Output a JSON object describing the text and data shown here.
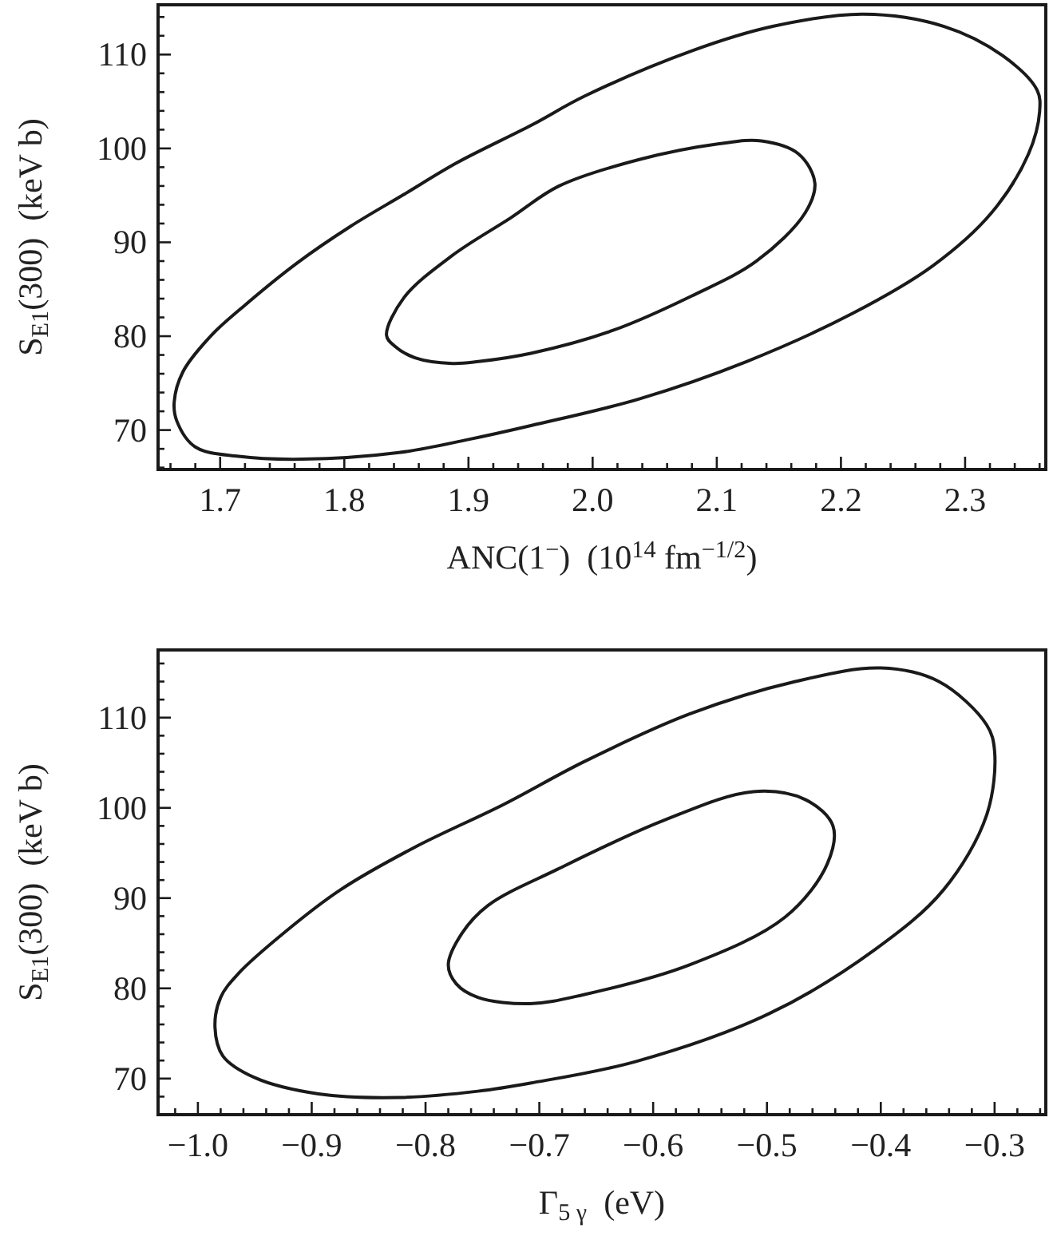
{
  "chart_data": [
    {
      "type": "line",
      "xlabel": "ANC(1$^{−}$)  (10$^{14}$ fm$^{−1/2}$)",
      "ylabel": "S$_{E1}$(300)  (keV b)",
      "xlim": [
        1.65,
        2.365
      ],
      "ylim": [
        65.8,
        115.3
      ],
      "xticks": [
        {
          "value": 1.7,
          "label": "1.7"
        },
        {
          "value": 1.8,
          "label": "1.8"
        },
        {
          "value": 1.9,
          "label": "1.9"
        },
        {
          "value": 2.0,
          "label": "2.0"
        },
        {
          "value": 2.1,
          "label": "2.1"
        },
        {
          "value": 2.2,
          "label": "2.2"
        },
        {
          "value": 2.3,
          "label": "2.3"
        },
        {
          "value": 1.66,
          "label": null
        },
        {
          "value": 1.68,
          "label": null
        },
        {
          "value": 1.72,
          "label": null
        },
        {
          "value": 1.74,
          "label": null
        },
        {
          "value": 1.76,
          "label": null
        },
        {
          "value": 1.78,
          "label": null
        },
        {
          "value": 1.82,
          "label": null
        },
        {
          "value": 1.84,
          "label": null
        },
        {
          "value": 1.86,
          "label": null
        },
        {
          "value": 1.88,
          "label": null
        },
        {
          "value": 1.92,
          "label": null
        },
        {
          "value": 1.94,
          "label": null
        },
        {
          "value": 1.96,
          "label": null
        },
        {
          "value": 1.98,
          "label": null
        },
        {
          "value": 2.02,
          "label": null
        },
        {
          "value": 2.04,
          "label": null
        },
        {
          "value": 2.06,
          "label": null
        },
        {
          "value": 2.08,
          "label": null
        },
        {
          "value": 2.12,
          "label": null
        },
        {
          "value": 2.14,
          "label": null
        },
        {
          "value": 2.16,
          "label": null
        },
        {
          "value": 2.18,
          "label": null
        },
        {
          "value": 2.22,
          "label": null
        },
        {
          "value": 2.24,
          "label": null
        },
        {
          "value": 2.26,
          "label": null
        },
        {
          "value": 2.28,
          "label": null
        },
        {
          "value": 2.32,
          "label": null
        },
        {
          "value": 2.34,
          "label": null
        },
        {
          "value": 2.36,
          "label": null
        }
      ],
      "yticks": [
        70,
        80,
        90,
        100,
        110,
        {
          "value": 66,
          "label": null
        },
        {
          "value": 68,
          "label": null
        },
        {
          "value": 72,
          "label": null
        },
        {
          "value": 74,
          "label": null
        },
        {
          "value": 76,
          "label": null
        },
        {
          "value": 78,
          "label": null
        },
        {
          "value": 82,
          "label": null
        },
        {
          "value": 84,
          "label": null
        },
        {
          "value": 86,
          "label": null
        },
        {
          "value": 88,
          "label": null
        },
        {
          "value": 92,
          "label": null
        },
        {
          "value": 94,
          "label": null
        },
        {
          "value": 96,
          "label": null
        },
        {
          "value": 98,
          "label": null
        },
        {
          "value": 102,
          "label": null
        },
        {
          "value": 104,
          "label": null
        },
        {
          "value": 106,
          "label": null
        },
        {
          "value": 108,
          "label": null
        },
        {
          "value": 112,
          "label": null
        },
        {
          "value": 114,
          "label": null
        }
      ]
    },
    {
      "type": "line",
      "xlabel": "Γ$_{5 γ}$  (eV)",
      "ylabel": "S$_{E1}$(300)  (keV b)",
      "xlim": [
        -1.035,
        -0.255
      ],
      "ylim": [
        66.0,
        117.5
      ],
      "xticks": [
        {
          "value": -1.0,
          "label": "−1.0"
        },
        {
          "value": -0.9,
          "label": "−0.9"
        },
        {
          "value": -0.8,
          "label": "−0.8"
        },
        {
          "value": -0.7,
          "label": "−0.7"
        },
        {
          "value": -0.6,
          "label": "−0.6"
        },
        {
          "value": -0.5,
          "label": "−0.5"
        },
        {
          "value": -0.4,
          "label": "−0.4"
        },
        {
          "value": -0.3,
          "label": "−0.3"
        },
        {
          "value": -1.02,
          "label": null
        },
        {
          "value": -0.98,
          "label": null
        },
        {
          "value": -0.96,
          "label": null
        },
        {
          "value": -0.94,
          "label": null
        },
        {
          "value": -0.92,
          "label": null
        },
        {
          "value": -0.88,
          "label": null
        },
        {
          "value": -0.86,
          "label": null
        },
        {
          "value": -0.84,
          "label": null
        },
        {
          "value": -0.82,
          "label": null
        },
        {
          "value": -0.78,
          "label": null
        },
        {
          "value": -0.76,
          "label": null
        },
        {
          "value": -0.74,
          "label": null
        },
        {
          "value": -0.72,
          "label": null
        },
        {
          "value": -0.68,
          "label": null
        },
        {
          "value": -0.66,
          "label": null
        },
        {
          "value": -0.64,
          "label": null
        },
        {
          "value": -0.62,
          "label": null
        },
        {
          "value": -0.58,
          "label": null
        },
        {
          "value": -0.56,
          "label": null
        },
        {
          "value": -0.54,
          "label": null
        },
        {
          "value": -0.52,
          "label": null
        },
        {
          "value": -0.48,
          "label": null
        },
        {
          "value": -0.46,
          "label": null
        },
        {
          "value": -0.44,
          "label": null
        },
        {
          "value": -0.42,
          "label": null
        },
        {
          "value": -0.38,
          "label": null
        },
        {
          "value": -0.36,
          "label": null
        },
        {
          "value": -0.34,
          "label": null
        },
        {
          "value": -0.32,
          "label": null
        },
        {
          "value": -0.28,
          "label": null
        },
        {
          "value": -0.26,
          "label": null
        }
      ],
      "yticks": [
        70,
        80,
        90,
        100,
        110,
        {
          "value": 66,
          "label": null
        },
        {
          "value": 68,
          "label": null
        },
        {
          "value": 72,
          "label": null
        },
        {
          "value": 74,
          "label": null
        },
        {
          "value": 76,
          "label": null
        },
        {
          "value": 78,
          "label": null
        },
        {
          "value": 82,
          "label": null
        },
        {
          "value": 84,
          "label": null
        },
        {
          "value": 86,
          "label": null
        },
        {
          "value": 88,
          "label": null
        },
        {
          "value": 92,
          "label": null
        },
        {
          "value": 94,
          "label": null
        },
        {
          "value": 96,
          "label": null
        },
        {
          "value": 98,
          "label": null
        },
        {
          "value": 102,
          "label": null
        },
        {
          "value": 104,
          "label": null
        },
        {
          "value": 106,
          "label": null
        },
        {
          "value": 108,
          "label": null
        },
        {
          "value": 112,
          "label": null
        },
        {
          "value": 114,
          "label": null
        },
        {
          "value": 116,
          "label": null
        }
      ]
    }
  ]
}
